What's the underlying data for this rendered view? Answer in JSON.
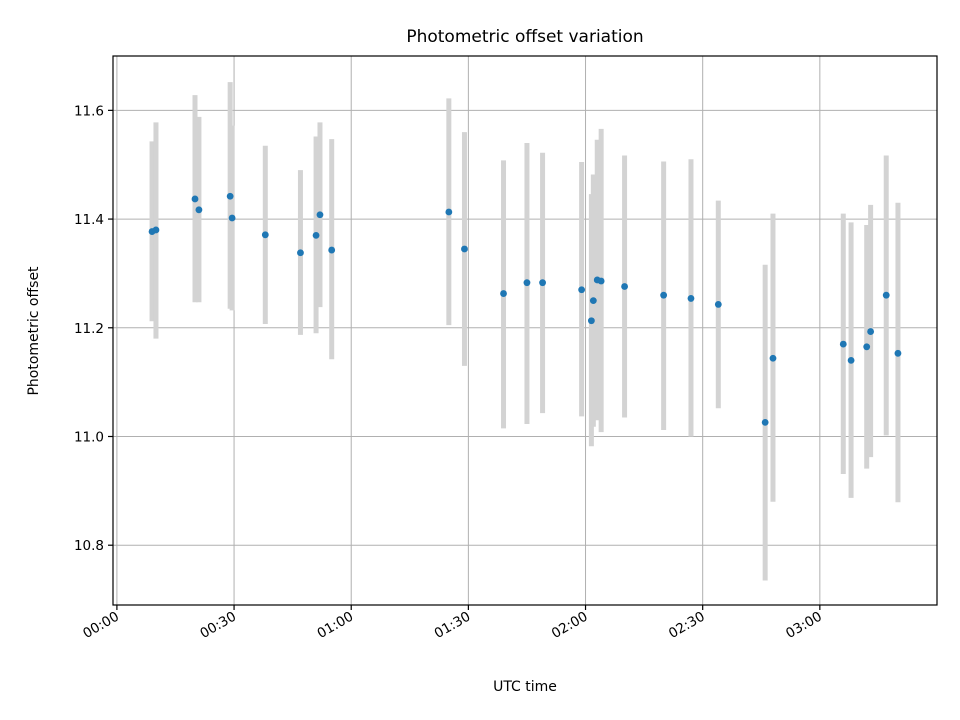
{
  "chart_data": {
    "type": "scatter",
    "title": "Photometric offset variation",
    "xlabel": "UTC time",
    "ylabel": "Photometric offset",
    "xlim": [
      "23:59",
      "03:30"
    ],
    "ylim": [
      10.69,
      11.7
    ],
    "grid": true,
    "x_ticks": [
      "00:00",
      "00:30",
      "01:00",
      "01:30",
      "02:00",
      "02:30",
      "03:00"
    ],
    "y_ticks": [
      10.8,
      11.0,
      11.2,
      11.4,
      11.6
    ],
    "colors": {
      "point": "#1f77b4",
      "errorbar": "#d3d3d3",
      "grid": "#b0b0b0"
    },
    "points": [
      {
        "t": "00:09:00",
        "y": 11.377,
        "low": 11.212,
        "high": 11.543
      },
      {
        "t": "00:10:00",
        "y": 11.38,
        "low": 11.18,
        "high": 11.578
      },
      {
        "t": "00:20:00",
        "y": 11.437,
        "low": 11.247,
        "high": 11.628
      },
      {
        "t": "00:21:00",
        "y": 11.417,
        "low": 11.247,
        "high": 11.588
      },
      {
        "t": "00:29:00",
        "y": 11.442,
        "low": 11.235,
        "high": 11.652
      },
      {
        "t": "00:29:30",
        "y": 11.402,
        "low": 11.232,
        "high": 11.572
      },
      {
        "t": "00:38:00",
        "y": 11.371,
        "low": 11.207,
        "high": 11.535
      },
      {
        "t": "00:47:00",
        "y": 11.338,
        "low": 11.187,
        "high": 11.49
      },
      {
        "t": "00:51:00",
        "y": 11.37,
        "low": 11.19,
        "high": 11.552
      },
      {
        "t": "00:52:00",
        "y": 11.408,
        "low": 11.238,
        "high": 11.578
      },
      {
        "t": "00:55:00",
        "y": 11.343,
        "low": 11.142,
        "high": 11.547
      },
      {
        "t": "01:25:00",
        "y": 11.413,
        "low": 11.205,
        "high": 11.622
      },
      {
        "t": "01:29:00",
        "y": 11.345,
        "low": 11.13,
        "high": 11.56
      },
      {
        "t": "01:39:00",
        "y": 11.263,
        "low": 11.015,
        "high": 11.508
      },
      {
        "t": "01:45:00",
        "y": 11.283,
        "low": 11.023,
        "high": 11.54
      },
      {
        "t": "01:49:00",
        "y": 11.283,
        "low": 11.043,
        "high": 11.522
      },
      {
        "t": "01:59:00",
        "y": 11.27,
        "low": 11.037,
        "high": 11.505
      },
      {
        "t": "02:01:30",
        "y": 11.213,
        "low": 10.982,
        "high": 11.446
      },
      {
        "t": "02:02:00",
        "y": 11.25,
        "low": 11.018,
        "high": 11.482
      },
      {
        "t": "02:03:00",
        "y": 11.288,
        "low": 11.03,
        "high": 11.546
      },
      {
        "t": "02:04:00",
        "y": 11.286,
        "low": 11.008,
        "high": 11.566
      },
      {
        "t": "02:10:00",
        "y": 11.276,
        "low": 11.035,
        "high": 11.517
      },
      {
        "t": "02:20:00",
        "y": 11.26,
        "low": 11.012,
        "high": 11.506
      },
      {
        "t": "02:27:00",
        "y": 11.254,
        "low": 11.0,
        "high": 11.51
      },
      {
        "t": "02:34:00",
        "y": 11.243,
        "low": 11.052,
        "high": 11.434
      },
      {
        "t": "02:46:00",
        "y": 11.026,
        "low": 10.735,
        "high": 11.316
      },
      {
        "t": "02:48:00",
        "y": 11.144,
        "low": 10.88,
        "high": 11.41
      },
      {
        "t": "03:06:00",
        "y": 11.17,
        "low": 10.931,
        "high": 11.41
      },
      {
        "t": "03:08:00",
        "y": 11.14,
        "low": 10.887,
        "high": 11.394
      },
      {
        "t": "03:12:00",
        "y": 11.165,
        "low": 10.941,
        "high": 11.389
      },
      {
        "t": "03:13:00",
        "y": 11.193,
        "low": 10.962,
        "high": 11.426
      },
      {
        "t": "03:17:00",
        "y": 11.26,
        "low": 11.002,
        "high": 11.517
      },
      {
        "t": "03:20:00",
        "y": 11.153,
        "low": 10.879,
        "high": 11.43
      }
    ]
  }
}
